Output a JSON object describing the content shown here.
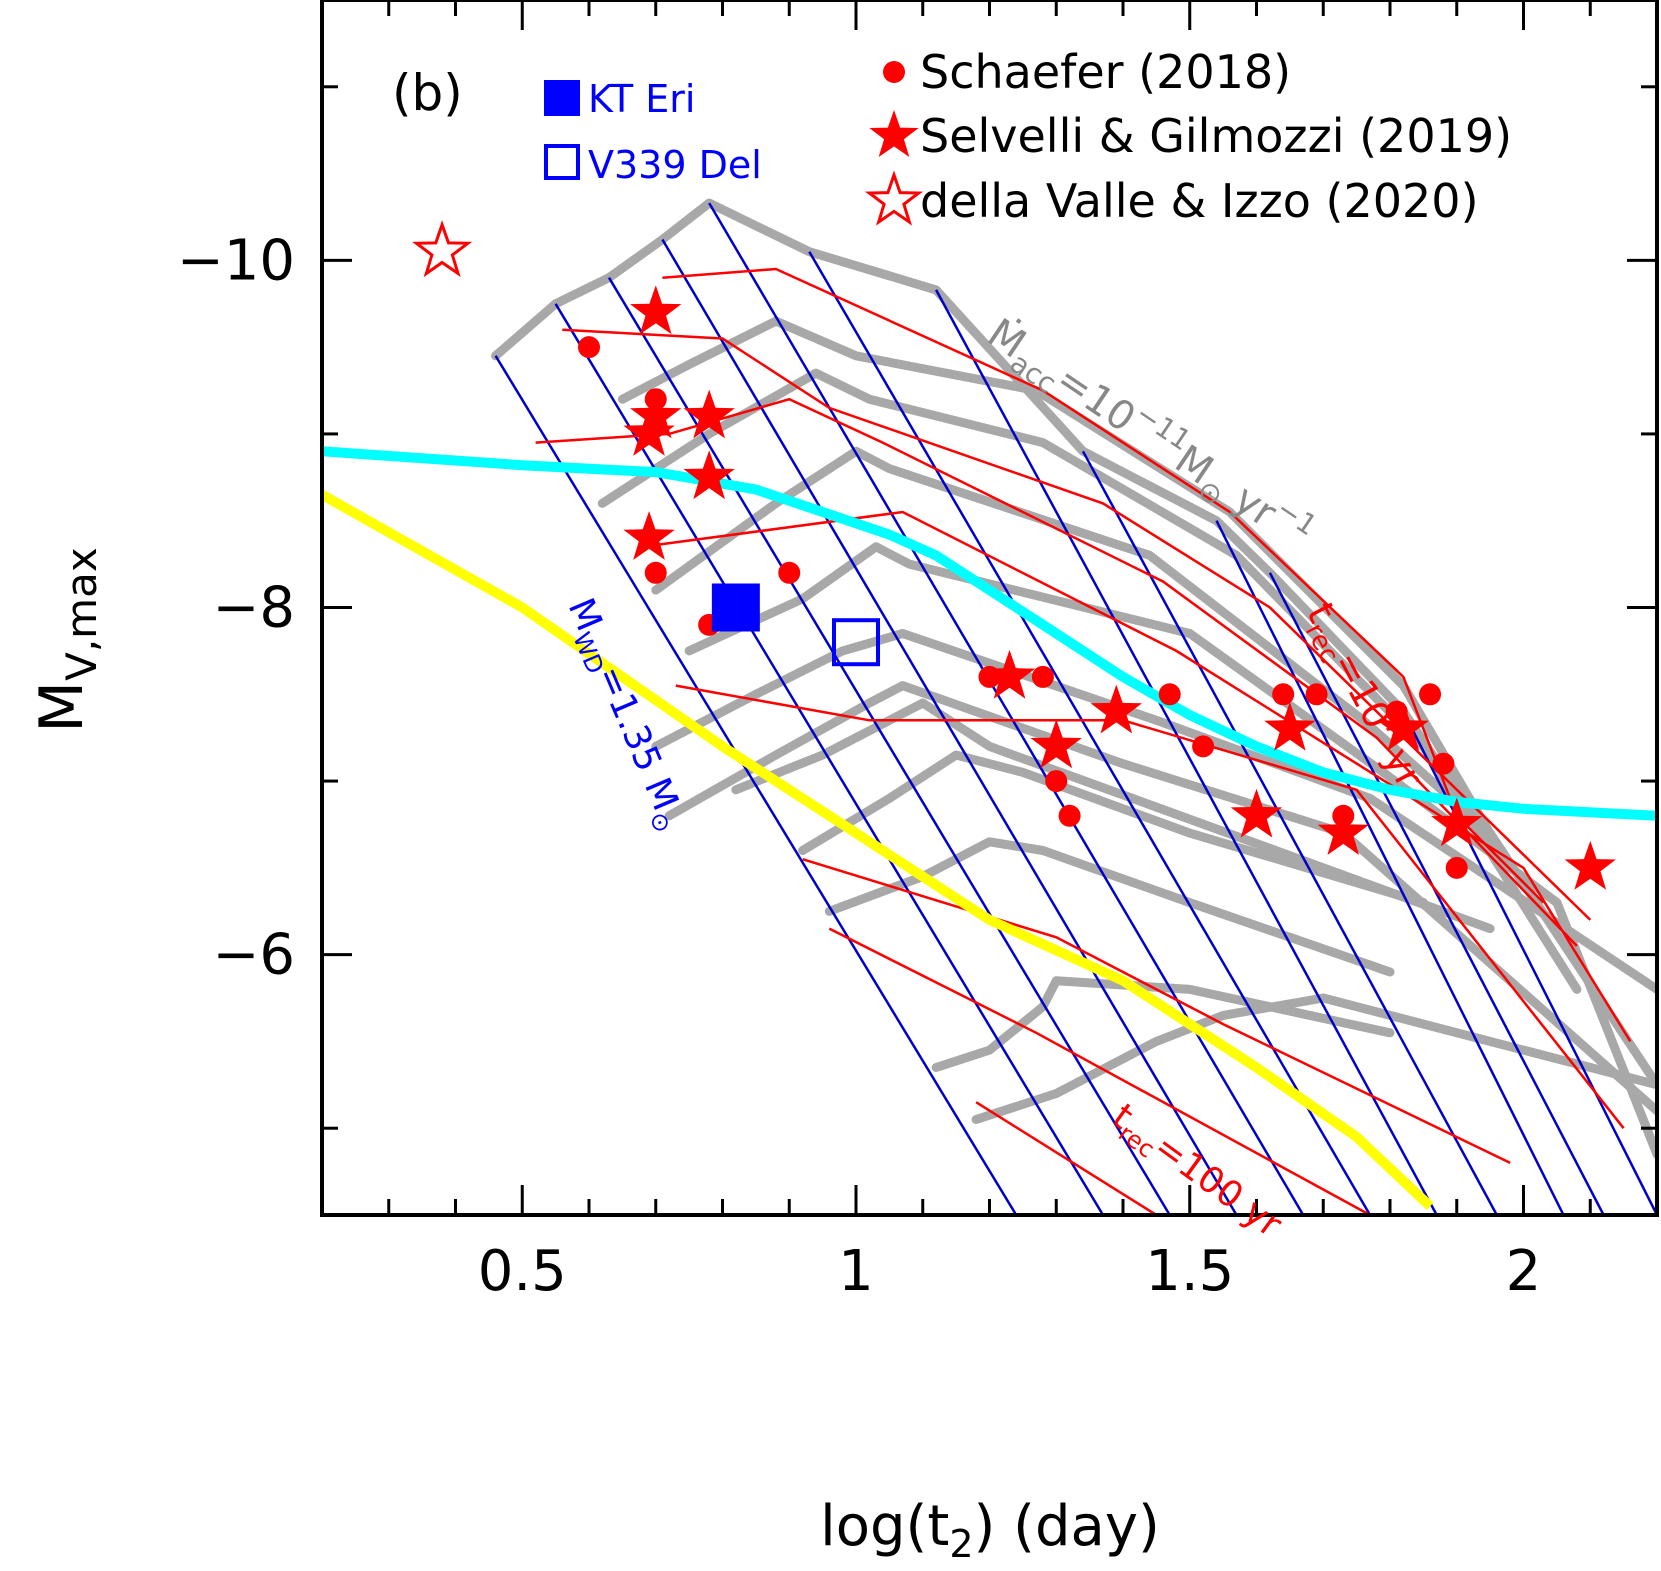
{
  "chart_data": {
    "type": "scatter",
    "panel_label": "(b)",
    "xlabel": "log(t",
    "xlabel_sub": "2",
    "xlabel_tail": ") (day)",
    "ylabel": "M",
    "ylabel_sub": "V,max",
    "xlim": [
      0.2,
      2.2
    ],
    "ylim": [
      -4.5,
      -11.5
    ],
    "x_ticks": [
      0.5,
      1,
      1.5,
      2
    ],
    "x_tick_labels": [
      "0.5",
      "1",
      "1.5",
      "2"
    ],
    "x_minor_ticks": [
      0.3,
      0.4,
      0.6,
      0.7,
      0.8,
      0.9,
      1.1,
      1.2,
      1.3,
      1.4,
      1.6,
      1.7,
      1.8,
      1.9,
      2.1
    ],
    "y_ticks": [
      -10,
      -8,
      -6
    ],
    "y_tick_labels": [
      "−10",
      "−8",
      "−6"
    ],
    "y_minor_ticks": [
      -11,
      -9,
      -7,
      -5
    ],
    "grid": false,
    "legend_placement": "top",
    "legend": [
      {
        "label": "KT Eri",
        "marker": "filled-square",
        "color": "#0000ff"
      },
      {
        "label": "V339 Del",
        "marker": "open-square",
        "color": "#0000ff"
      },
      {
        "label": "Schaefer (2018)",
        "marker": "filled-circle",
        "color": "#ff0000"
      },
      {
        "label": "Selvelli & Gilmozzi (2019)",
        "marker": "filled-star",
        "color": "#ff0000"
      },
      {
        "label": "della Valle & Izzo (2020)",
        "marker": "open-star",
        "color": "#ff0000"
      }
    ],
    "annotations": {
      "mdot": {
        "text": "Ṁ",
        "sub": "acc",
        "rest": "=10",
        "sup": "−11",
        "unit": "M",
        "unit_tail": " yr",
        "unit_sup": "−1"
      },
      "mwd": {
        "text": "M",
        "sub": "WD",
        "rest": "=1.35 M"
      },
      "trec_top": {
        "text": "t",
        "sub": "rec",
        "rest": "=10",
        "sup": "7",
        "tail": " yr"
      },
      "trec_bottom": {
        "text": "t",
        "sub": "rec",
        "rest": "=100 yr"
      }
    },
    "series": [
      {
        "name": "Schaefer (2018)",
        "marker": "circle",
        "color": "#ff0000",
        "points": [
          [
            0.6,
            -9.5
          ],
          [
            0.7,
            -9.2
          ],
          [
            0.7,
            -8.2
          ],
          [
            0.78,
            -7.9
          ],
          [
            0.9,
            -8.2
          ],
          [
            1.2,
            -7.6
          ],
          [
            1.28,
            -7.6
          ],
          [
            1.3,
            -7.0
          ],
          [
            1.32,
            -6.8
          ],
          [
            1.47,
            -7.5
          ],
          [
            1.52,
            -7.2
          ],
          [
            1.64,
            -7.5
          ],
          [
            1.69,
            -7.5
          ],
          [
            1.73,
            -6.8
          ],
          [
            1.81,
            -7.4
          ],
          [
            1.86,
            -7.5
          ],
          [
            1.88,
            -7.1
          ],
          [
            1.9,
            -6.5
          ]
        ]
      },
      {
        "name": "Selvelli & Gilmozzi (2019)",
        "marker": "star",
        "color": "#ff0000",
        "points": [
          [
            0.7,
            -9.7
          ],
          [
            0.7,
            -9.1
          ],
          [
            0.69,
            -9.0
          ],
          [
            0.78,
            -9.1
          ],
          [
            0.78,
            -8.75
          ],
          [
            0.69,
            -8.4
          ],
          [
            1.23,
            -7.6
          ],
          [
            1.3,
            -7.2
          ],
          [
            1.39,
            -7.4
          ],
          [
            1.6,
            -6.8
          ],
          [
            1.65,
            -7.3
          ],
          [
            1.73,
            -6.7
          ],
          [
            1.82,
            -7.3
          ],
          [
            1.9,
            -6.75
          ],
          [
            2.1,
            -6.5
          ]
        ]
      },
      {
        "name": "della Valle & Izzo (2020)",
        "marker": "open-star",
        "color": "#ff0000",
        "points": [
          [
            0.38,
            -10.05
          ]
        ]
      },
      {
        "name": "KT Eri",
        "marker": "square",
        "color": "#0000ff",
        "points": [
          [
            0.82,
            -8.0
          ]
        ]
      },
      {
        "name": "V339 Del",
        "marker": "open-square",
        "color": "#0000ff",
        "points": [
          [
            1.0,
            -7.8
          ]
        ]
      }
    ],
    "model_grid": {
      "blue_lines": [
        [
          [
            0.46,
            -9.45
          ],
          [
            1.24,
            -4.5
          ]
        ],
        [
          [
            0.55,
            -9.75
          ],
          [
            1.37,
            -4.5
          ]
        ],
        [
          [
            0.63,
            -9.9
          ],
          [
            1.47,
            -4.5
          ]
        ],
        [
          [
            0.71,
            -10.12
          ],
          [
            1.57,
            -4.5
          ]
        ],
        [
          [
            0.78,
            -10.33
          ],
          [
            1.67,
            -4.5
          ]
        ],
        [
          [
            0.93,
            -10.05
          ],
          [
            1.77,
            -4.5
          ]
        ],
        [
          [
            1.12,
            -9.83
          ],
          [
            1.87,
            -4.5
          ]
        ],
        [
          [
            1.34,
            -8.9
          ],
          [
            1.96,
            -4.5
          ]
        ],
        [
          [
            1.54,
            -8.5
          ],
          [
            2.06,
            -4.5
          ]
        ],
        [
          [
            1.62,
            -8.2
          ],
          [
            2.12,
            -4.5
          ]
        ],
        [
          [
            1.82,
            -7.4
          ],
          [
            2.2,
            -4.5
          ]
        ]
      ],
      "red_lines": [
        [
          [
            0.71,
            -9.9
          ],
          [
            0.88,
            -9.95
          ],
          [
            1.28,
            -9.25
          ],
          [
            1.56,
            -8.55
          ],
          [
            1.82,
            -7.6
          ],
          [
            1.9,
            -6.8
          ],
          [
            2.03,
            -6.3
          ]
        ],
        [
          [
            0.56,
            -9.6
          ],
          [
            0.8,
            -9.55
          ],
          [
            0.96,
            -9.15
          ],
          [
            1.37,
            -8.6
          ],
          [
            1.62,
            -8.0
          ],
          [
            1.86,
            -7.1
          ],
          [
            2.1,
            -6.2
          ]
        ],
        [
          [
            0.52,
            -8.95
          ],
          [
            0.72,
            -9.0
          ],
          [
            0.9,
            -9.2
          ],
          [
            1.04,
            -8.95
          ],
          [
            1.46,
            -8.15
          ],
          [
            1.78,
            -7.25
          ],
          [
            2.08,
            -6.05
          ]
        ],
        [
          [
            0.68,
            -8.35
          ],
          [
            1.07,
            -8.55
          ],
          [
            1.48,
            -7.75
          ],
          [
            2.0,
            -6.5
          ],
          [
            2.16,
            -5.5
          ]
        ],
        [
          [
            0.73,
            -7.55
          ],
          [
            1.02,
            -7.35
          ],
          [
            1.4,
            -7.35
          ],
          [
            1.75,
            -6.95
          ],
          [
            2.15,
            -5.0
          ]
        ],
        [
          [
            0.92,
            -6.55
          ],
          [
            1.3,
            -6.1
          ],
          [
            1.55,
            -5.6
          ],
          [
            1.98,
            -4.8
          ]
        ],
        [
          [
            0.96,
            -6.15
          ],
          [
            1.27,
            -5.55
          ],
          [
            1.77,
            -4.5
          ]
        ],
        [
          [
            1.18,
            -5.15
          ],
          [
            1.45,
            -4.5
          ]
        ]
      ],
      "gray_lines": [
        [
          [
            0.46,
            -9.45
          ],
          [
            0.55,
            -9.75
          ],
          [
            0.63,
            -9.9
          ],
          [
            0.71,
            -10.12
          ],
          [
            0.78,
            -10.33
          ],
          [
            0.93,
            -10.05
          ],
          [
            1.12,
            -9.83
          ],
          [
            1.34,
            -8.9
          ],
          [
            1.54,
            -8.5
          ],
          [
            1.62,
            -8.2
          ],
          [
            1.82,
            -7.4
          ],
          [
            1.96,
            -6.6
          ]
        ],
        [
          [
            0.65,
            -9.2
          ],
          [
            0.75,
            -9.4
          ],
          [
            0.88,
            -9.65
          ],
          [
            1.0,
            -9.45
          ],
          [
            1.27,
            -9.25
          ],
          [
            1.56,
            -8.55
          ],
          [
            1.82,
            -7.55
          ],
          [
            1.98,
            -6.5
          ],
          [
            2.05,
            -6.3
          ]
        ],
        [
          [
            0.62,
            -8.6
          ],
          [
            0.78,
            -9.0
          ],
          [
            0.94,
            -9.35
          ],
          [
            1.02,
            -9.2
          ],
          [
            1.28,
            -8.95
          ],
          [
            1.57,
            -8.3
          ],
          [
            1.85,
            -7.2
          ],
          [
            2.08,
            -5.8
          ]
        ],
        [
          [
            0.7,
            -8.1
          ],
          [
            0.88,
            -8.6
          ],
          [
            1.0,
            -8.9
          ],
          [
            1.05,
            -8.8
          ],
          [
            1.44,
            -8.3
          ],
          [
            1.76,
            -7.35
          ],
          [
            1.95,
            -6.7
          ],
          [
            2.2,
            -5.25
          ]
        ],
        [
          [
            0.75,
            -7.75
          ],
          [
            0.92,
            -8.05
          ],
          [
            1.03,
            -8.35
          ],
          [
            1.08,
            -8.25
          ],
          [
            1.5,
            -7.85
          ],
          [
            1.79,
            -7.05
          ],
          [
            2.05,
            -6.3
          ],
          [
            2.2,
            -4.85
          ]
        ],
        [
          [
            0.7,
            -7.2
          ],
          [
            0.85,
            -7.5
          ],
          [
            0.98,
            -7.75
          ],
          [
            1.07,
            -7.85
          ],
          [
            1.45,
            -7.35
          ],
          [
            1.77,
            -6.9
          ],
          [
            2.2,
            -5.8
          ]
        ],
        [
          [
            0.72,
            -6.8
          ],
          [
            0.88,
            -7.15
          ],
          [
            1.02,
            -7.45
          ],
          [
            1.07,
            -7.55
          ],
          [
            1.4,
            -7.1
          ],
          [
            1.73,
            -6.7
          ],
          [
            2.2,
            -5.1
          ]
        ],
        [
          [
            0.82,
            -6.95
          ],
          [
            0.95,
            -7.15
          ],
          [
            1.1,
            -7.45
          ],
          [
            1.2,
            -7.2
          ],
          [
            1.45,
            -6.85
          ],
          [
            1.95,
            -6.15
          ]
        ],
        [
          [
            0.92,
            -6.6
          ],
          [
            1.05,
            -6.9
          ],
          [
            1.15,
            -7.15
          ],
          [
            1.25,
            -7.05
          ],
          [
            1.5,
            -6.7
          ],
          [
            1.85,
            -6.3
          ]
        ],
        [
          [
            0.96,
            -6.25
          ],
          [
            1.1,
            -6.45
          ],
          [
            1.2,
            -6.65
          ],
          [
            1.28,
            -6.6
          ],
          [
            1.5,
            -6.3
          ],
          [
            1.8,
            -5.9
          ]
        ],
        [
          [
            1.12,
            -5.35
          ],
          [
            1.2,
            -5.45
          ],
          [
            1.28,
            -5.7
          ],
          [
            1.3,
            -5.85
          ],
          [
            1.5,
            -5.8
          ],
          [
            1.8,
            -5.55
          ]
        ],
        [
          [
            1.18,
            -5.05
          ],
          [
            1.3,
            -5.2
          ],
          [
            1.45,
            -5.5
          ],
          [
            1.55,
            -5.65
          ],
          [
            1.7,
            -5.75
          ],
          [
            2.2,
            -5.25
          ]
        ]
      ],
      "cyan_curve": [
        [
          0.2,
          -8.9
        ],
        [
          0.5,
          -8.82
        ],
        [
          0.7,
          -8.78
        ],
        [
          0.85,
          -8.68
        ],
        [
          0.95,
          -8.55
        ],
        [
          1.05,
          -8.42
        ],
        [
          1.12,
          -8.3
        ],
        [
          1.2,
          -8.1
        ],
        [
          1.3,
          -7.85
        ],
        [
          1.4,
          -7.6
        ],
        [
          1.5,
          -7.38
        ],
        [
          1.6,
          -7.2
        ],
        [
          1.7,
          -7.05
        ],
        [
          1.8,
          -6.95
        ],
        [
          1.9,
          -6.88
        ],
        [
          2.0,
          -6.84
        ],
        [
          2.2,
          -6.8
        ]
      ],
      "yellow_line": [
        [
          0.2,
          -8.65
        ],
        [
          0.5,
          -8.0
        ],
        [
          0.8,
          -7.2
        ],
        [
          1.0,
          -6.7
        ],
        [
          1.2,
          -6.2
        ],
        [
          1.4,
          -5.85
        ],
        [
          1.6,
          -5.35
        ],
        [
          1.75,
          -4.95
        ],
        [
          1.86,
          -4.55
        ]
      ]
    },
    "colors": {
      "schaefer": "#ff0000",
      "selvelli": "#ff0000",
      "dellavalle": "#ff0000",
      "kt_eri": "#0000ff",
      "v339_del": "#0000ff",
      "blue_lines": "#0000cc",
      "red_lines": "#ff0000",
      "gray_lines": "#a8a8a8",
      "cyan": "#00ffff",
      "yellow": "#ffff00",
      "mdot_text": "#888888"
    }
  }
}
